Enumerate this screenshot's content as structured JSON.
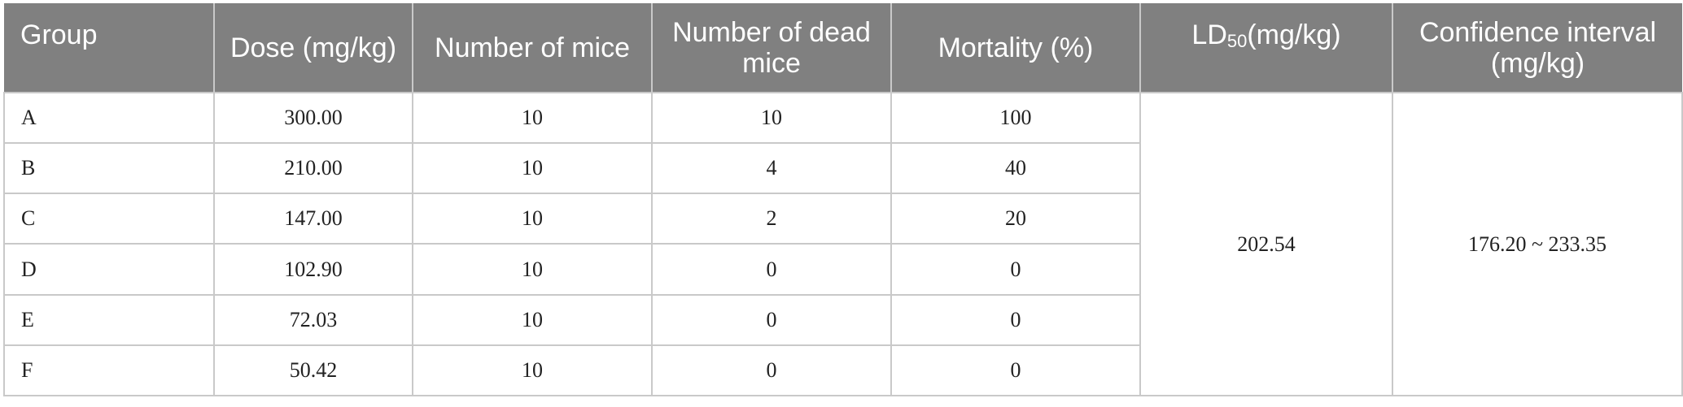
{
  "table": {
    "headers": {
      "group": "Group",
      "dose": "Dose (mg/kg)",
      "number_of_mice": "Number of mice",
      "number_of_dead_mice": "Number of dead mice",
      "mortality": "Mortality (%)",
      "ld50_prefix": "LD",
      "ld50_subscript": "50",
      "ld50_suffix": "(mg/kg)",
      "confidence_interval": "Confidence interval (mg/kg)"
    },
    "rows": [
      {
        "group": "A",
        "dose": "300.00",
        "mice": "10",
        "dead": "10",
        "mortality": "100"
      },
      {
        "group": "B",
        "dose": "210.00",
        "mice": "10",
        "dead": "4",
        "mortality": "40"
      },
      {
        "group": "C",
        "dose": "147.00",
        "mice": "10",
        "dead": "2",
        "mortality": "20"
      },
      {
        "group": "D",
        "dose": "102.90",
        "mice": "10",
        "dead": "0",
        "mortality": "0"
      },
      {
        "group": "E",
        "dose": "72.03",
        "mice": "10",
        "dead": "0",
        "mortality": "0"
      },
      {
        "group": "F",
        "dose": "50.42",
        "mice": "10",
        "dead": "0",
        "mortality": "0"
      }
    ],
    "ld50_value": "202.54",
    "confidence_interval_value": "176.20 ~ 233.35"
  }
}
